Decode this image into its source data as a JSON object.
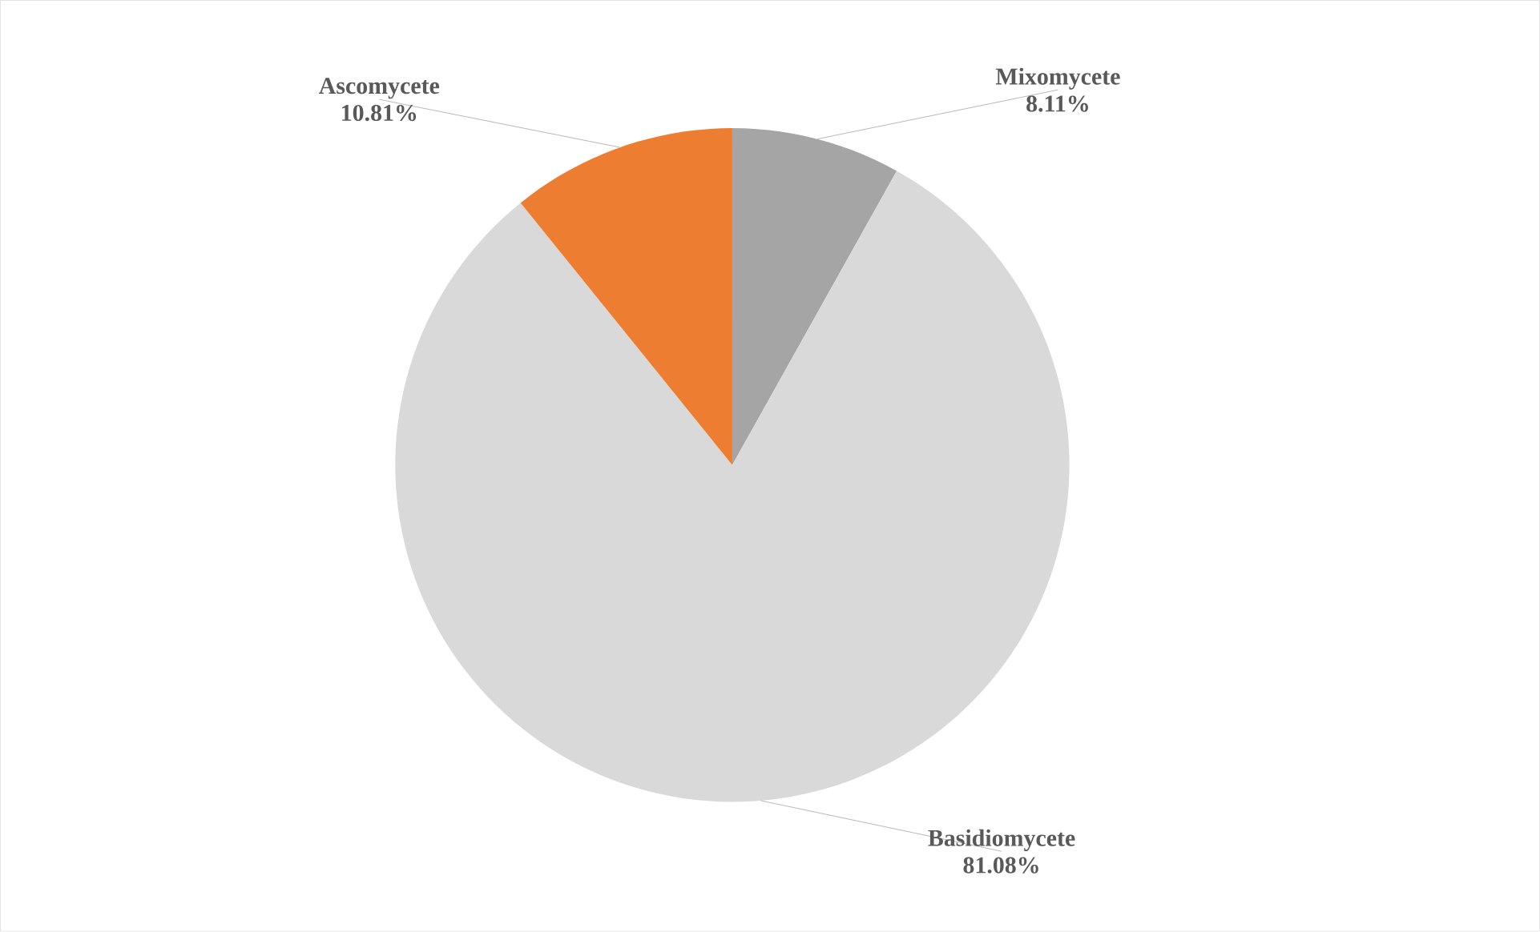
{
  "chart_data": {
    "type": "pie",
    "categories": [
      "Mixomycete",
      "Basidiomycete",
      "Ascomycete"
    ],
    "values": [
      8.11,
      81.08,
      10.81
    ],
    "colors": [
      "#a5a5a5",
      "#d9d9d9",
      "#ed7d31"
    ],
    "value_labels": [
      "8.11%",
      "81.08%",
      "10.81%"
    ],
    "legend": false
  }
}
